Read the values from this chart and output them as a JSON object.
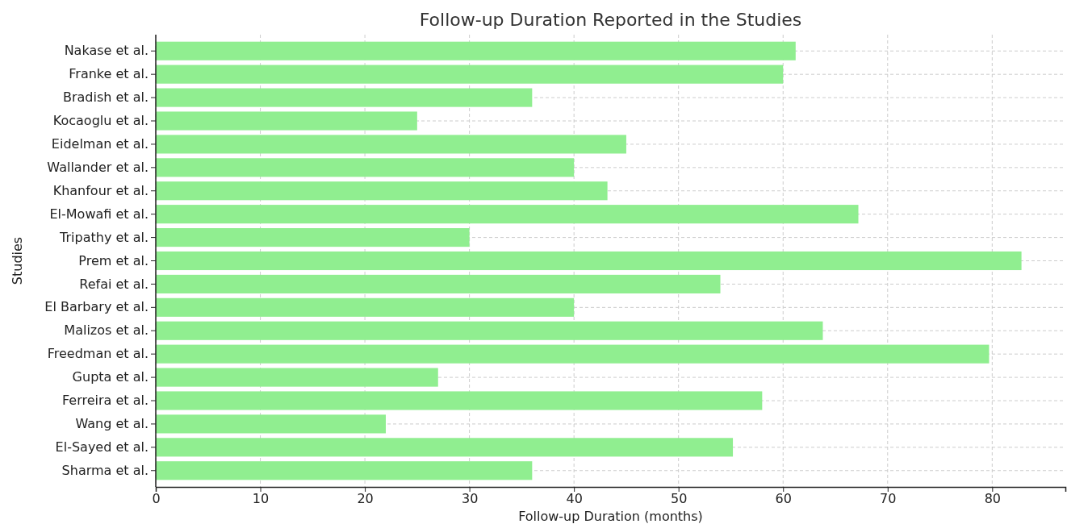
{
  "chart_data": {
    "type": "bar",
    "orientation": "horizontal",
    "title": "Follow-up Duration Reported in the Studies",
    "xlabel": "Follow-up Duration (months)",
    "ylabel": "Studies",
    "categories": [
      "Nakase et al.",
      "Franke et al.",
      "Bradish et al.",
      "Kocaoglu et al.",
      "Eidelman et al.",
      "Wallander et al.",
      "Khanfour et al.",
      "El-Mowafi et al.",
      "Tripathy et al.",
      "Prem et al.",
      "Refai et al.",
      "El Barbary et al.",
      "Malizos et al.",
      "Freedman et al.",
      "Gupta et al.",
      "Ferreira et al.",
      "Wang et al.",
      "El-Sayed et al.",
      "Sharma et al."
    ],
    "values": [
      61.2,
      60,
      36,
      25,
      45,
      40,
      43.2,
      67.2,
      30,
      82.8,
      54,
      40,
      63.8,
      79.7,
      27,
      58,
      22,
      55.2,
      36
    ],
    "color": "#90ee90",
    "xlim": [
      0,
      87
    ],
    "xticks": [
      0,
      10,
      20,
      30,
      40,
      50,
      60,
      70,
      80
    ],
    "grid": true
  }
}
